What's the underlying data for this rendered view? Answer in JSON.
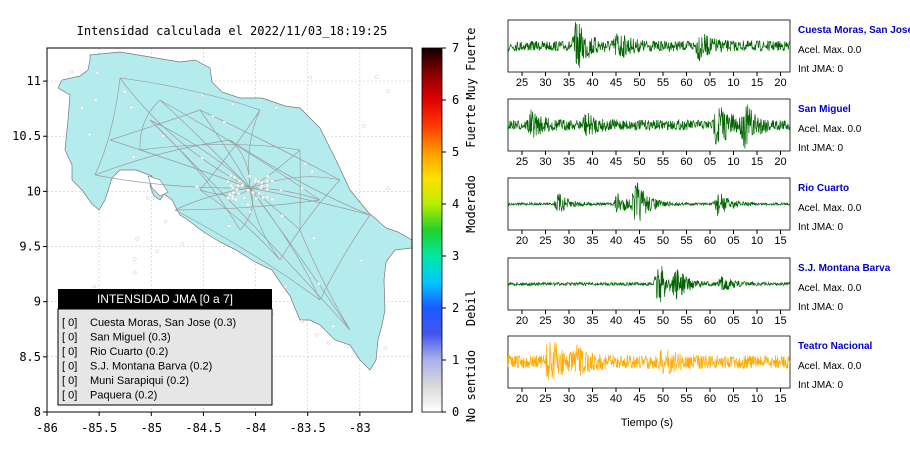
{
  "title": "Intensidad calculada el 2022/11/03_18:19:25",
  "colors": {
    "land": "#b4ecee",
    "roads": "#9a9a9a",
    "trace_normal": "#006400",
    "trace_highlight": "#ffaa00",
    "station_name": "#0000cc",
    "legend_header_bg": "#000000",
    "legend_bg": "#e6e6e6"
  },
  "chart_data": [
    {
      "type": "map",
      "title": "Intensidad calculada el 2022/11/03_18:19:25",
      "xlim": [
        -86,
        -82.5
      ],
      "ylim": [
        8,
        11.3
      ],
      "xticks": [
        -86,
        -85.5,
        -85,
        -84.5,
        -84,
        -83.5,
        -83
      ],
      "yticks": [
        8,
        8.5,
        9,
        9.5,
        10,
        10.5,
        11
      ],
      "colorbar": {
        "range": [
          0,
          7
        ],
        "ticks": [
          0,
          1,
          2,
          3,
          4,
          5,
          6,
          7
        ],
        "labels": [
          "No sentido",
          "Debil",
          "Moderado",
          "Fuerte",
          "Muy Fuerte"
        ],
        "colors": [
          "#ffffff",
          "#d9d9d9",
          "#aab0ea",
          "#4455ee",
          "#1a5bff",
          "#00c8ff",
          "#00e8a0",
          "#22d02a",
          "#b8ee00",
          "#ffe000",
          "#ff9a00",
          "#ff3a00",
          "#e00000",
          "#8a0000",
          "#100000"
        ]
      },
      "legend": {
        "title": "INTENSIDAD JMA [0 a 7]",
        "entries": [
          {
            "intensity": "[ 0]",
            "label": "Cuesta Moras, San Jose (0.3)"
          },
          {
            "intensity": "[ 0]",
            "label": "San Miguel (0.3)"
          },
          {
            "intensity": "[ 0]",
            "label": "Rio Cuarto (0.2)"
          },
          {
            "intensity": "[ 0]",
            "label": "S.J. Montana Barva (0.2)"
          },
          {
            "intensity": "[ 0]",
            "label": "Muni Sarapiqui (0.2)"
          },
          {
            "intensity": "[ 0]",
            "label": "Paquera (0.2)"
          }
        ]
      }
    },
    {
      "type": "line",
      "xlabel": "Tiempo (s)",
      "series": [
        {
          "name": "Cuesta Moras, San Jose",
          "acel_label": "Acel. Max. 0.0",
          "int_label": "Int JMA: 0",
          "ticks": [
            "25",
            "30",
            "35",
            "40",
            "45",
            "50",
            "55",
            "60",
            "05",
            "10",
            "15",
            "20"
          ],
          "tick_start": 25,
          "bursts": [
            [
              36,
              1.0
            ],
            [
              45,
              0.5
            ],
            [
              63,
              0.5
            ]
          ],
          "base": 0.22,
          "highlight": false
        },
        {
          "name": "San Miguel",
          "acel_label": "Acel. Max. 0.0",
          "int_label": "Int JMA: 0",
          "ticks": [
            "25",
            "30",
            "35",
            "40",
            "45",
            "50",
            "55",
            "60",
            "05",
            "10",
            "15",
            "20"
          ],
          "tick_start": 25,
          "bursts": [
            [
              26,
              0.45
            ],
            [
              38,
              0.4
            ],
            [
              67,
              1.0
            ],
            [
              73,
              0.8
            ]
          ],
          "base": 0.22,
          "highlight": false
        },
        {
          "name": "Rio Cuarto",
          "acel_label": "Acel. Max. 0.0",
          "int_label": "Int JMA: 0",
          "ticks": [
            "20",
            "25",
            "30",
            "35",
            "40",
            "45",
            "50",
            "55",
            "60",
            "05",
            "10",
            "15"
          ],
          "tick_start": 20,
          "bursts": [
            [
              27,
              0.45
            ],
            [
              40,
              0.5
            ],
            [
              44,
              1.0
            ],
            [
              62,
              0.6
            ]
          ],
          "base": 0.05,
          "highlight": false
        },
        {
          "name": "S.J. Montana Barva",
          "acel_label": "Acel. Max. 0.0",
          "int_label": "Int JMA: 0",
          "ticks": [
            "20",
            "25",
            "30",
            "35",
            "40",
            "45",
            "50",
            "55",
            "60",
            "05",
            "10",
            "15"
          ],
          "tick_start": 20,
          "bursts": [
            [
              49,
              1.0
            ],
            [
              53,
              0.5
            ],
            [
              63,
              0.3
            ]
          ],
          "base": 0.07,
          "highlight": false
        },
        {
          "name": "Teatro Nacional",
          "acel_label": "Acel. Max. 0.0",
          "int_label": "Int JMA: 0",
          "ticks": [
            "20",
            "25",
            "30",
            "35",
            "40",
            "45",
            "50",
            "55",
            "60",
            "05",
            "10",
            "15"
          ],
          "tick_start": 20,
          "bursts": [
            [
              25,
              1.0
            ],
            [
              31,
              0.4
            ],
            [
              50,
              0.4
            ]
          ],
          "base": 0.3,
          "highlight": true
        }
      ]
    }
  ]
}
